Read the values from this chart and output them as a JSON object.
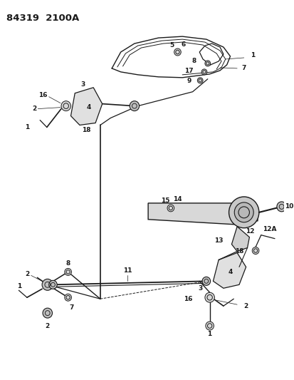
{
  "title": "84319  2100A",
  "bg_color": "#ffffff",
  "line_color": "#1a1a1a",
  "fig_w": 4.14,
  "fig_h": 5.33,
  "dpi": 100
}
